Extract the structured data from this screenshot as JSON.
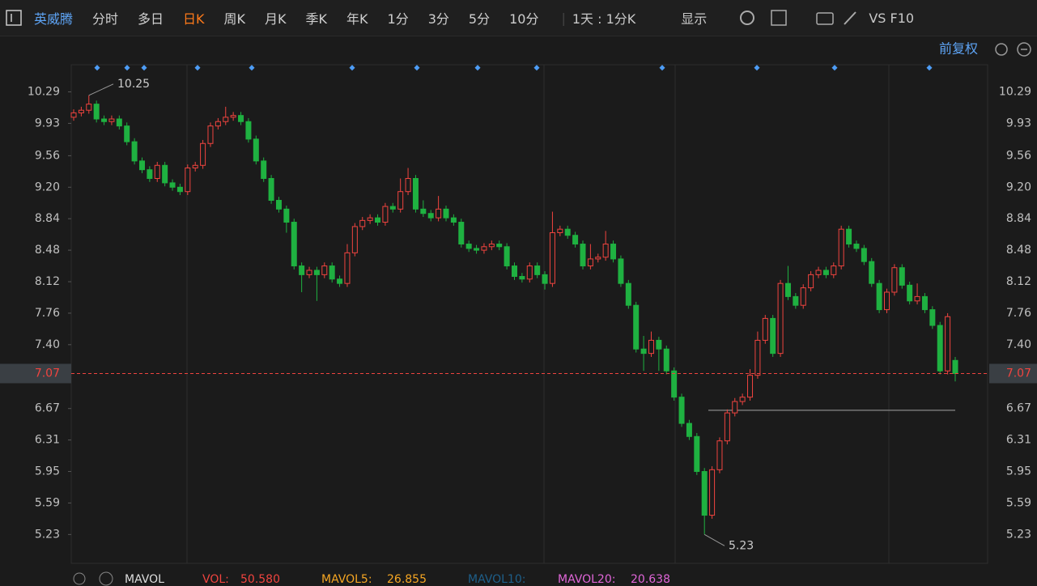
{
  "toolbar": {
    "stock": "英威腾",
    "tabs": [
      "分时",
      "多日",
      "日K",
      "周K",
      "月K",
      "季K",
      "年K",
      "1分",
      "3分",
      "5分",
      "10分"
    ],
    "active_tab": 2,
    "period": "1天 : 1分K",
    "display": "显示",
    "vs": "VS",
    "f10": "F10"
  },
  "chart": {
    "type": "candlestick",
    "adjust": "前复权",
    "open": [
      10.0,
      10.05,
      10.08,
      10.15,
      9.98,
      9.95,
      9.98,
      9.9,
      9.72,
      9.5,
      9.4,
      9.3,
      9.45,
      9.25,
      9.2,
      9.15,
      9.42,
      9.45,
      9.7,
      9.9,
      9.95,
      10.0,
      10.02,
      9.95,
      9.75,
      9.5,
      9.3,
      9.05,
      8.95,
      8.8,
      8.3,
      8.2,
      8.25,
      8.2,
      8.3,
      8.15,
      8.1,
      8.45,
      8.75,
      8.82,
      8.85,
      8.8,
      8.98,
      8.95,
      9.15,
      9.3,
      8.95,
      8.9,
      8.85,
      8.95,
      8.85,
      8.8,
      8.55,
      8.5,
      8.48,
      8.52,
      8.55,
      8.52,
      8.3,
      8.18,
      8.15,
      8.3,
      8.2,
      8.1,
      8.68,
      8.72,
      8.65,
      8.55,
      8.3,
      8.38,
      8.4,
      8.55,
      8.38,
      8.1,
      7.85,
      7.35,
      7.3,
      7.45,
      7.35,
      7.1,
      6.8,
      6.5,
      6.35,
      5.95,
      5.45,
      5.97,
      6.3,
      6.62,
      6.75,
      6.8,
      7.05,
      7.45,
      7.7,
      7.3,
      8.1,
      7.95,
      7.85,
      8.05,
      8.2,
      8.25,
      8.2,
      8.3,
      8.72,
      8.55,
      8.5,
      8.35,
      8.1,
      7.8,
      8.0,
      8.28,
      8.08,
      7.9,
      7.95,
      7.8,
      7.62,
      7.1,
      7.22
    ],
    "high": [
      10.09,
      10.12,
      10.25,
      10.19,
      10.02,
      10.02,
      10.02,
      9.94,
      9.76,
      9.54,
      9.44,
      9.49,
      9.49,
      9.29,
      9.24,
      9.46,
      9.49,
      9.74,
      9.94,
      9.99,
      10.12,
      10.06,
      10.06,
      9.99,
      9.79,
      9.54,
      9.34,
      9.09,
      8.99,
      8.84,
      8.34,
      8.29,
      8.29,
      8.34,
      8.34,
      8.19,
      8.55,
      8.79,
      8.86,
      8.89,
      8.89,
      9.02,
      9.02,
      9.3,
      9.42,
      9.34,
      9.05,
      8.94,
      9.1,
      8.99,
      8.89,
      8.84,
      8.59,
      8.54,
      8.56,
      8.59,
      8.59,
      8.56,
      8.34,
      8.22,
      8.34,
      8.34,
      8.24,
      8.92,
      8.76,
      8.76,
      8.69,
      8.59,
      8.55,
      8.44,
      8.7,
      8.59,
      8.42,
      8.14,
      7.89,
      7.5,
      7.55,
      7.49,
      7.39,
      7.14,
      6.84,
      6.54,
      6.39,
      5.99,
      6.01,
      6.34,
      6.66,
      6.79,
      6.84,
      7.12,
      7.55,
      7.74,
      7.74,
      8.14,
      8.3,
      7.99,
      8.09,
      8.24,
      8.29,
      8.29,
      8.34,
      8.76,
      8.76,
      8.59,
      8.54,
      8.39,
      8.14,
      8.04,
      8.32,
      8.32,
      8.12,
      8.1,
      7.99,
      7.84,
      7.66,
      7.76,
      7.26
    ],
    "low": [
      9.96,
      10.01,
      10.04,
      9.94,
      9.91,
      9.91,
      9.86,
      9.68,
      9.46,
      9.36,
      9.26,
      9.26,
      9.21,
      9.16,
      9.11,
      9.11,
      9.38,
      9.41,
      9.66,
      9.86,
      9.91,
      9.96,
      9.91,
      9.71,
      9.46,
      9.26,
      9.01,
      8.91,
      8.68,
      8.26,
      8.0,
      8.16,
      7.9,
      8.16,
      8.11,
      8.06,
      8.06,
      8.41,
      8.71,
      8.78,
      8.76,
      8.76,
      8.91,
      8.91,
      9.11,
      8.91,
      8.86,
      8.81,
      8.81,
      8.81,
      8.76,
      8.51,
      8.46,
      8.44,
      8.44,
      8.48,
      8.48,
      8.26,
      8.14,
      8.11,
      8.11,
      8.16,
      8.03,
      8.06,
      8.64,
      8.61,
      8.51,
      8.26,
      8.26,
      8.34,
      8.36,
      8.34,
      8.06,
      7.81,
      7.31,
      7.1,
      7.26,
      7.1,
      7.06,
      6.76,
      6.46,
      6.31,
      5.91,
      5.23,
      5.41,
      5.93,
      6.26,
      6.58,
      6.71,
      6.76,
      7.01,
      7.41,
      7.26,
      7.26,
      7.91,
      7.81,
      7.81,
      8.01,
      8.16,
      8.16,
      8.16,
      8.26,
      8.51,
      8.46,
      8.31,
      8.06,
      7.76,
      7.76,
      7.96,
      8.04,
      7.86,
      7.86,
      7.76,
      7.58,
      7.06,
      7.06,
      6.98
    ],
    "close": [
      10.05,
      10.08,
      10.15,
      9.98,
      9.95,
      9.98,
      9.9,
      9.72,
      9.5,
      9.4,
      9.3,
      9.45,
      9.25,
      9.2,
      9.15,
      9.42,
      9.45,
      9.7,
      9.9,
      9.95,
      10.0,
      10.02,
      9.95,
      9.75,
      9.5,
      9.3,
      9.05,
      8.95,
      8.8,
      8.3,
      8.2,
      8.25,
      8.2,
      8.3,
      8.15,
      8.1,
      8.45,
      8.75,
      8.82,
      8.85,
      8.8,
      8.98,
      8.95,
      9.15,
      9.3,
      8.95,
      8.9,
      8.85,
      8.95,
      8.85,
      8.8,
      8.55,
      8.5,
      8.48,
      8.52,
      8.55,
      8.52,
      8.3,
      8.18,
      8.15,
      8.3,
      8.2,
      8.1,
      8.68,
      8.72,
      8.65,
      8.55,
      8.3,
      8.38,
      8.4,
      8.55,
      8.38,
      8.1,
      7.85,
      7.35,
      7.3,
      7.45,
      7.35,
      7.1,
      6.8,
      6.5,
      6.35,
      5.95,
      5.45,
      5.97,
      6.3,
      6.62,
      6.75,
      6.8,
      7.05,
      7.45,
      7.7,
      7.3,
      8.1,
      7.95,
      7.85,
      8.05,
      8.2,
      8.25,
      8.2,
      8.3,
      8.72,
      8.55,
      8.5,
      8.35,
      8.1,
      7.8,
      8.0,
      8.28,
      8.08,
      7.9,
      7.95,
      7.8,
      7.62,
      7.1,
      7.72,
      7.07
    ],
    "up_color": "#f0443f",
    "down_color": "#1fb141",
    "ylim": [
      4.9,
      10.6
    ],
    "yticks": [
      10.29,
      9.93,
      9.56,
      {
        "value": 9.2,
        "label": "9.20"
      },
      8.84,
      8.48,
      8.12,
      7.76,
      {
        "value": 7.4,
        "label": "7.40"
      },
      6.67,
      6.31,
      5.95,
      5.59,
      5.23
    ],
    "last_price": 7.07,
    "max_label": 10.25,
    "min_label": 5.23,
    "support_line": 6.65
  },
  "indicator": {
    "name": "MAVOL",
    "vol_label": "VOL:",
    "vol": "50.580",
    "ma5_label": "MAVOL5:",
    "ma5": "26.855",
    "ma10_label": "MAVOL10:",
    "ma20_label": "MAVOL20:",
    "ma20": "20.638"
  }
}
